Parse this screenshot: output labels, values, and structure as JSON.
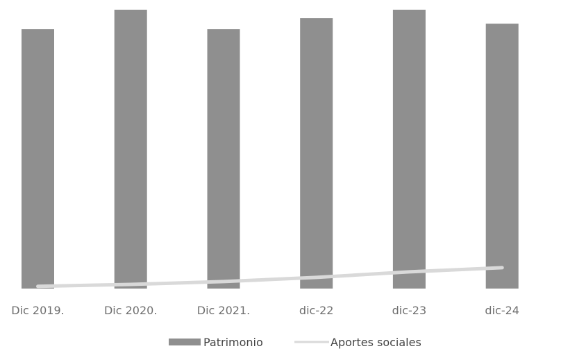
{
  "chart_data": {
    "type": "bar",
    "categories": [
      "Dic 2019.",
      "Dic 2020.",
      "Dic 2021.",
      "dic-22",
      "dic-23",
      "dic-24"
    ],
    "series": [
      {
        "name": "Patrimonio",
        "kind": "bar",
        "values": [
          93,
          100,
          93,
          97,
          100,
          95
        ]
      },
      {
        "name": "Aportes sociales",
        "kind": "line",
        "values": [
          0.8,
          1.5,
          2.5,
          4.0,
          6.0,
          7.5
        ]
      }
    ],
    "ylim": [
      0,
      100
    ],
    "grid": false,
    "legend_position": "bottom",
    "colors": {
      "bar": "#8f8f8f",
      "line": "#d9d9d9"
    }
  }
}
